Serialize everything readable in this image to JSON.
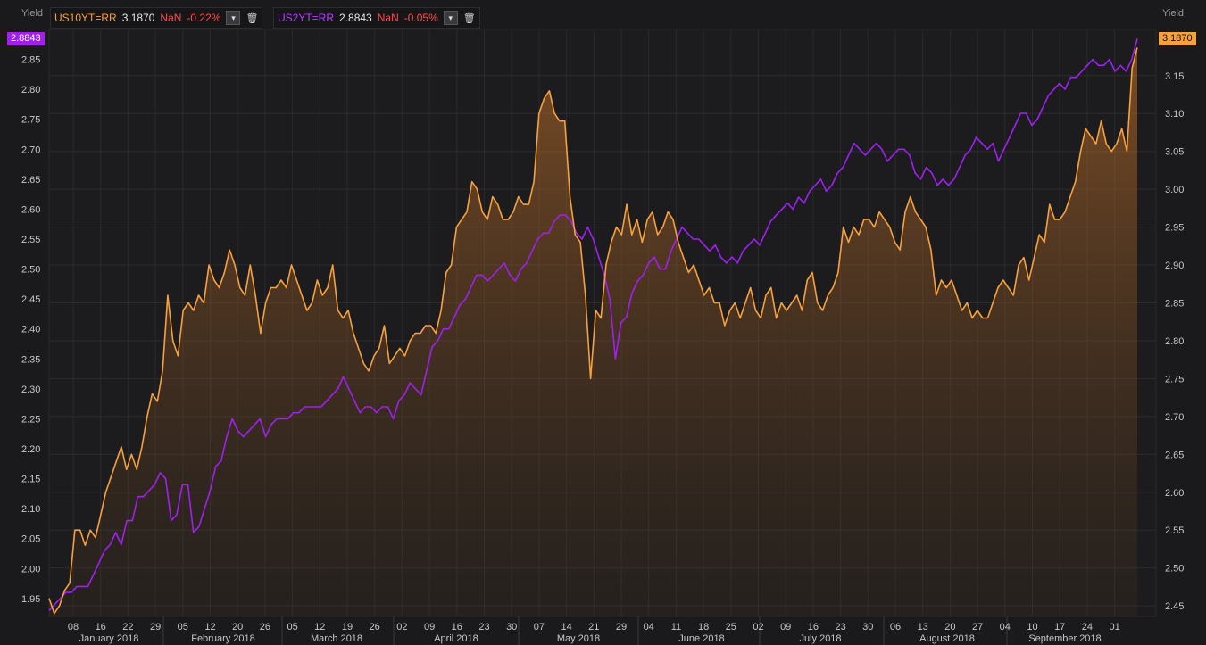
{
  "chart_data": {
    "type": "line",
    "left_axis": {
      "title": "Yield",
      "ticks": [
        1.95,
        2.0,
        2.05,
        2.1,
        2.15,
        2.2,
        2.25,
        2.3,
        2.35,
        2.4,
        2.45,
        2.5,
        2.55,
        2.6,
        2.65,
        2.7,
        2.75,
        2.8,
        2.85
      ],
      "ylim": [
        1.92,
        2.9
      ]
    },
    "right_axis": {
      "title": "Yield",
      "ticks": [
        2.45,
        2.5,
        2.55,
        2.6,
        2.65,
        2.7,
        2.75,
        2.8,
        2.85,
        2.9,
        2.95,
        3.0,
        3.05,
        3.1,
        3.15
      ],
      "ylim": [
        2.436,
        3.211
      ]
    },
    "x_ticks": [
      "08",
      "16",
      "22",
      "29",
      "05",
      "12",
      "20",
      "26",
      "05",
      "12",
      "19",
      "26",
      "02",
      "09",
      "16",
      "23",
      "30",
      "07",
      "14",
      "21",
      "29",
      "04",
      "11",
      "18",
      "25",
      "02",
      "09",
      "16",
      "23",
      "30",
      "06",
      "13",
      "20",
      "27",
      "04",
      "10",
      "17",
      "24",
      "01"
    ],
    "months": [
      "January 2018",
      "February 2018",
      "March 2018",
      "April 2018",
      "May 2018",
      "June 2018",
      "July 2018",
      "August 2018",
      "September 2018"
    ],
    "legend_placement": "top-left",
    "series": [
      {
        "name": "US10YT=RR",
        "axis": "right",
        "color": "#f7a13e",
        "last": "3.1870",
        "nan_label": "NaN",
        "change": "-0.22%",
        "values": [
          2.46,
          2.44,
          2.45,
          2.47,
          2.48,
          2.55,
          2.55,
          2.53,
          2.55,
          2.54,
          2.57,
          2.6,
          2.62,
          2.64,
          2.66,
          2.63,
          2.65,
          2.63,
          2.66,
          2.7,
          2.73,
          2.72,
          2.76,
          2.86,
          2.8,
          2.78,
          2.84,
          2.85,
          2.84,
          2.86,
          2.85,
          2.9,
          2.88,
          2.87,
          2.89,
          2.92,
          2.9,
          2.87,
          2.86,
          2.9,
          2.86,
          2.81,
          2.85,
          2.87,
          2.87,
          2.88,
          2.87,
          2.9,
          2.88,
          2.86,
          2.84,
          2.85,
          2.88,
          2.86,
          2.87,
          2.9,
          2.84,
          2.83,
          2.84,
          2.81,
          2.79,
          2.77,
          2.76,
          2.78,
          2.79,
          2.82,
          2.77,
          2.78,
          2.79,
          2.78,
          2.8,
          2.81,
          2.81,
          2.82,
          2.82,
          2.81,
          2.84,
          2.89,
          2.9,
          2.95,
          2.96,
          2.97,
          3.01,
          3.0,
          2.97,
          2.96,
          2.99,
          2.98,
          2.96,
          2.96,
          2.97,
          2.99,
          2.98,
          2.98,
          3.01,
          3.1,
          3.12,
          3.13,
          3.1,
          3.09,
          3.09,
          2.99,
          2.94,
          2.93,
          2.86,
          2.75,
          2.84,
          2.83,
          2.9,
          2.93,
          2.95,
          2.94,
          2.98,
          2.94,
          2.96,
          2.93,
          2.96,
          2.97,
          2.94,
          2.95,
          2.97,
          2.96,
          2.93,
          2.91,
          2.89,
          2.9,
          2.88,
          2.86,
          2.87,
          2.85,
          2.85,
          2.82,
          2.84,
          2.85,
          2.83,
          2.85,
          2.87,
          2.84,
          2.83,
          2.86,
          2.87,
          2.83,
          2.85,
          2.84,
          2.85,
          2.86,
          2.84,
          2.88,
          2.89,
          2.85,
          2.84,
          2.86,
          2.87,
          2.89,
          2.95,
          2.93,
          2.95,
          2.94,
          2.96,
          2.96,
          2.95,
          2.97,
          2.96,
          2.95,
          2.93,
          2.92,
          2.97,
          2.99,
          2.97,
          2.96,
          2.95,
          2.92,
          2.86,
          2.88,
          2.87,
          2.88,
          2.86,
          2.84,
          2.85,
          2.83,
          2.84,
          2.83,
          2.83,
          2.85,
          2.87,
          2.88,
          2.87,
          2.86,
          2.9,
          2.91,
          2.88,
          2.91,
          2.94,
          2.93,
          2.98,
          2.96,
          2.96,
          2.97,
          2.99,
          3.01,
          3.05,
          3.08,
          3.07,
          3.06,
          3.09,
          3.06,
          3.05,
          3.06,
          3.08,
          3.05,
          3.16,
          3.187
        ]
      },
      {
        "name": "US2YT=RR",
        "axis": "left",
        "color": "#a020f0",
        "last": "2.8843",
        "nan_label": "NaN",
        "change": "-0.05%",
        "values": [
          1.93,
          1.94,
          1.95,
          1.96,
          1.96,
          1.97,
          1.97,
          1.97,
          1.99,
          2.01,
          2.03,
          2.04,
          2.06,
          2.04,
          2.08,
          2.08,
          2.12,
          2.12,
          2.13,
          2.14,
          2.16,
          2.15,
          2.08,
          2.09,
          2.14,
          2.14,
          2.06,
          2.07,
          2.1,
          2.13,
          2.17,
          2.18,
          2.22,
          2.25,
          2.23,
          2.22,
          2.23,
          2.24,
          2.25,
          2.22,
          2.24,
          2.25,
          2.25,
          2.25,
          2.26,
          2.26,
          2.27,
          2.27,
          2.27,
          2.27,
          2.28,
          2.29,
          2.3,
          2.32,
          2.3,
          2.28,
          2.26,
          2.27,
          2.27,
          2.26,
          2.27,
          2.27,
          2.25,
          2.28,
          2.29,
          2.31,
          2.3,
          2.29,
          2.33,
          2.37,
          2.38,
          2.4,
          2.4,
          2.42,
          2.44,
          2.45,
          2.47,
          2.49,
          2.49,
          2.48,
          2.49,
          2.5,
          2.51,
          2.49,
          2.48,
          2.5,
          2.51,
          2.53,
          2.55,
          2.56,
          2.56,
          2.58,
          2.59,
          2.59,
          2.58,
          2.56,
          2.55,
          2.57,
          2.55,
          2.52,
          2.49,
          2.45,
          2.35,
          2.41,
          2.42,
          2.46,
          2.48,
          2.49,
          2.51,
          2.52,
          2.5,
          2.5,
          2.53,
          2.55,
          2.57,
          2.56,
          2.55,
          2.55,
          2.54,
          2.53,
          2.54,
          2.52,
          2.51,
          2.52,
          2.51,
          2.53,
          2.54,
          2.55,
          2.54,
          2.56,
          2.58,
          2.59,
          2.6,
          2.61,
          2.6,
          2.62,
          2.61,
          2.63,
          2.64,
          2.65,
          2.63,
          2.64,
          2.66,
          2.67,
          2.69,
          2.71,
          2.7,
          2.69,
          2.7,
          2.71,
          2.7,
          2.68,
          2.69,
          2.7,
          2.7,
          2.69,
          2.66,
          2.65,
          2.67,
          2.66,
          2.64,
          2.65,
          2.64,
          2.65,
          2.67,
          2.69,
          2.7,
          2.72,
          2.71,
          2.7,
          2.71,
          2.68,
          2.7,
          2.72,
          2.74,
          2.76,
          2.76,
          2.74,
          2.75,
          2.77,
          2.79,
          2.8,
          2.81,
          2.8,
          2.82,
          2.82,
          2.83,
          2.84,
          2.85,
          2.84,
          2.84,
          2.85,
          2.83,
          2.84,
          2.83,
          2.85,
          2.8843
        ]
      }
    ]
  },
  "legend_icons": {
    "dropdown": "chevron-down-icon",
    "delete": "trash-icon"
  }
}
